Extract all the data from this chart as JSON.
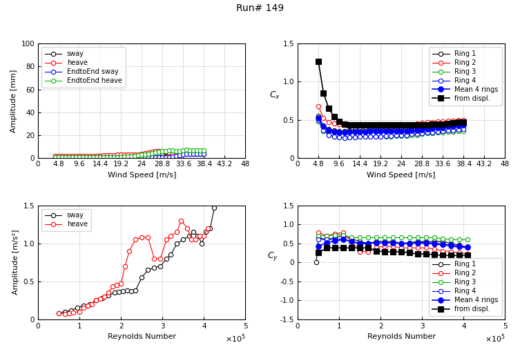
{
  "title": "Run# 149",
  "top_left": {
    "xlabel": "Wind Speed [m/s]",
    "ylabel": "Amplitude [mm]",
    "xlim": [
      0,
      48
    ],
    "ylim": [
      0,
      100
    ],
    "xticks": [
      0,
      4.8,
      9.6,
      14.4,
      19.2,
      24,
      28.8,
      33.6,
      38.4,
      43.2,
      48
    ],
    "yticks": [
      0,
      20,
      40,
      60,
      80,
      100
    ],
    "wind_speed": [
      4.0,
      4.8,
      5.6,
      6.4,
      7.2,
      8.0,
      8.8,
      9.6,
      10.4,
      11.2,
      12.0,
      12.8,
      13.6,
      14.4,
      15.2,
      16.0,
      16.8,
      17.6,
      18.4,
      19.2,
      20.0,
      20.8,
      21.6,
      22.4,
      23.2,
      24.0,
      24.8,
      25.6,
      26.4,
      27.2,
      28.0,
      28.8,
      29.6,
      30.4,
      31.2,
      32.0,
      32.8,
      33.6,
      34.4,
      35.2,
      36.0,
      36.8,
      37.6,
      38.4
    ],
    "sway": [
      1.0,
      1.2,
      1.0,
      0.8,
      0.8,
      0.8,
      0.8,
      0.8,
      0.8,
      1.0,
      1.0,
      1.0,
      1.2,
      1.5,
      1.5,
      1.5,
      1.5,
      1.5,
      1.5,
      1.5,
      1.5,
      1.5,
      1.5,
      1.5,
      1.5,
      1.8,
      2.0,
      2.0,
      2.5,
      3.0,
      3.5,
      4.0,
      4.5,
      4.5,
      4.0,
      4.0,
      4.0,
      4.0,
      4.0,
      3.5,
      3.5,
      3.5,
      3.5,
      3.5
    ],
    "heave": [
      1.5,
      1.5,
      1.5,
      1.5,
      1.5,
      1.5,
      1.5,
      1.5,
      1.5,
      1.5,
      1.5,
      1.5,
      1.5,
      1.5,
      2.0,
      2.0,
      2.0,
      2.0,
      2.5,
      2.5,
      2.5,
      2.5,
      2.5,
      2.5,
      3.0,
      3.5,
      4.0,
      4.5,
      5.0,
      5.5,
      5.5,
      5.5,
      5.0,
      4.5,
      4.0,
      4.5,
      4.5,
      4.5,
      4.5,
      4.5,
      4.5,
      5.0,
      5.0,
      5.0
    ],
    "ete_sway": [
      0.5,
      0.5,
      0.5,
      0.5,
      0.5,
      0.5,
      0.5,
      0.5,
      0.5,
      0.5,
      0.5,
      0.5,
      0.5,
      0.5,
      0.5,
      0.5,
      0.5,
      0.5,
      0.5,
      0.5,
      0.5,
      0.5,
      0.5,
      0.5,
      0.5,
      0.5,
      0.5,
      0.5,
      0.5,
      0.5,
      0.5,
      0.5,
      0.5,
      0.5,
      1.0,
      1.5,
      2.0,
      3.0,
      3.5,
      3.5,
      3.5,
      3.5,
      3.5,
      3.5
    ],
    "ete_heave": [
      0.5,
      0.5,
      0.5,
      0.5,
      0.5,
      0.5,
      0.5,
      0.5,
      0.5,
      0.5,
      0.5,
      0.5,
      0.5,
      0.5,
      0.5,
      0.5,
      0.5,
      0.5,
      0.5,
      0.5,
      0.8,
      1.0,
      1.2,
      1.5,
      2.0,
      2.5,
      3.0,
      3.5,
      4.0,
      4.5,
      5.0,
      5.5,
      6.0,
      6.5,
      6.5,
      5.5,
      5.5,
      6.5,
      7.0,
      6.5,
      6.5,
      6.5,
      6.5,
      6.5
    ],
    "legend": [
      "sway",
      "heave",
      "EndtoEnd sway",
      "EndtoEnd heave"
    ],
    "colors": [
      "#000000",
      "#ff0000",
      "#0000ff",
      "#00bb00"
    ]
  },
  "top_right": {
    "xlabel": "Wind Speed [m/s]",
    "ylabel": "C_x",
    "xlim": [
      0,
      48
    ],
    "ylim": [
      0,
      1.5
    ],
    "xticks": [
      0,
      4.8,
      9.6,
      14.4,
      19.2,
      24,
      28.8,
      33.6,
      38.4,
      43.2,
      48
    ],
    "yticks": [
      0,
      0.5,
      1.0,
      1.5
    ],
    "wind_speed": [
      4.8,
      6.0,
      7.2,
      8.4,
      9.6,
      10.8,
      12.0,
      13.2,
      14.4,
      15.6,
      16.8,
      18.0,
      19.2,
      20.4,
      21.6,
      22.8,
      24.0,
      25.2,
      26.4,
      27.6,
      28.8,
      30.0,
      31.2,
      32.4,
      33.6,
      34.8,
      36.0,
      37.2,
      38.4
    ],
    "ring1": [
      0.55,
      0.42,
      0.38,
      0.36,
      0.35,
      0.35,
      0.36,
      0.37,
      0.37,
      0.37,
      0.38,
      0.38,
      0.38,
      0.38,
      0.38,
      0.38,
      0.38,
      0.38,
      0.39,
      0.39,
      0.4,
      0.41,
      0.42,
      0.43,
      0.44,
      0.45,
      0.46,
      0.47,
      0.48
    ],
    "ring2": [
      0.68,
      0.52,
      0.47,
      0.45,
      0.44,
      0.44,
      0.44,
      0.44,
      0.44,
      0.44,
      0.44,
      0.44,
      0.44,
      0.44,
      0.44,
      0.44,
      0.44,
      0.44,
      0.44,
      0.45,
      0.46,
      0.47,
      0.47,
      0.48,
      0.48,
      0.49,
      0.49,
      0.5,
      0.5
    ],
    "ring3": [
      0.48,
      0.35,
      0.3,
      0.28,
      0.27,
      0.26,
      0.27,
      0.27,
      0.28,
      0.28,
      0.28,
      0.28,
      0.28,
      0.28,
      0.28,
      0.29,
      0.29,
      0.29,
      0.3,
      0.3,
      0.31,
      0.32,
      0.32,
      0.33,
      0.33,
      0.34,
      0.34,
      0.35,
      0.35
    ],
    "ring4": [
      0.5,
      0.36,
      0.3,
      0.28,
      0.27,
      0.26,
      0.27,
      0.27,
      0.28,
      0.28,
      0.28,
      0.28,
      0.28,
      0.29,
      0.29,
      0.3,
      0.3,
      0.3,
      0.31,
      0.31,
      0.32,
      0.33,
      0.33,
      0.34,
      0.35,
      0.36,
      0.36,
      0.37,
      0.38
    ],
    "mean4": [
      0.52,
      0.41,
      0.36,
      0.34,
      0.33,
      0.33,
      0.34,
      0.34,
      0.34,
      0.34,
      0.35,
      0.35,
      0.35,
      0.35,
      0.35,
      0.35,
      0.35,
      0.35,
      0.36,
      0.36,
      0.37,
      0.38,
      0.39,
      0.4,
      0.4,
      0.41,
      0.41,
      0.42,
      0.43
    ],
    "from_displ_ws": [
      4.8,
      6.0,
      7.2,
      8.4,
      9.6,
      10.8,
      12.0,
      13.2,
      14.4,
      15.6,
      16.8,
      18.0,
      19.2,
      20.4,
      21.6,
      22.8,
      24.0,
      25.2,
      26.4,
      27.6,
      28.8,
      30.0,
      31.2,
      32.4,
      33.6,
      34.8,
      36.0,
      37.2,
      38.4
    ],
    "from_displ": [
      1.27,
      0.85,
      0.65,
      0.54,
      0.48,
      0.44,
      0.43,
      0.43,
      0.43,
      0.43,
      0.43,
      0.43,
      0.43,
      0.43,
      0.43,
      0.43,
      0.43,
      0.43,
      0.43,
      0.43,
      0.43,
      0.43,
      0.44,
      0.44,
      0.44,
      0.45,
      0.46,
      0.47,
      0.47
    ],
    "legend": [
      "Ring 1",
      "Ring 2",
      "Ring 3",
      "Ring 4",
      "Mean 4 rings",
      "from displ."
    ],
    "ring_colors": [
      "#000000",
      "#ff0000",
      "#00aa00",
      "#0000ff"
    ],
    "mean_color": "#0000ff",
    "displ_color": "#000000"
  },
  "bot_left": {
    "xlabel": "Reynolds Number",
    "ylabel": "Amplitude [m/s²]",
    "xlim": [
      0,
      500000.0
    ],
    "ylim": [
      0,
      1.5
    ],
    "xticks": [
      0,
      100000.0,
      200000.0,
      300000.0,
      400000.0,
      500000.0
    ],
    "yticks": [
      0,
      0.5,
      1.0,
      1.5
    ],
    "re_sway": [
      50000.0,
      65000.0,
      80000.0,
      95000.0,
      110000.0,
      125000.0,
      140000.0,
      155000.0,
      170000.0,
      185000.0,
      195000.0,
      205000.0,
      215000.0,
      225000.0,
      235000.0,
      250000.0,
      265000.0,
      280000.0,
      295000.0,
      310000.0,
      320000.0,
      335000.0,
      350000.0,
      365000.0,
      375000.0,
      385000.0,
      395000.0,
      405000.0,
      415000.0,
      425000.0
    ],
    "sway": [
      0.08,
      0.1,
      0.12,
      0.15,
      0.18,
      0.2,
      0.25,
      0.28,
      0.32,
      0.35,
      0.36,
      0.37,
      0.38,
      0.37,
      0.38,
      0.55,
      0.65,
      0.68,
      0.7,
      0.8,
      0.85,
      1.0,
      1.05,
      1.1,
      1.15,
      1.1,
      1.0,
      1.15,
      1.2,
      1.47
    ],
    "re_heave": [
      50000.0,
      65000.0,
      75000.0,
      85000.0,
      100000.0,
      110000.0,
      120000.0,
      130000.0,
      140000.0,
      150000.0,
      160000.0,
      170000.0,
      180000.0,
      190000.0,
      200000.0,
      210000.0,
      220000.0,
      235000.0,
      250000.0,
      265000.0,
      280000.0,
      295000.0,
      310000.0,
      320000.0,
      335000.0,
      345000.0,
      360000.0,
      370000.0,
      380000.0,
      390000.0,
      400000.0,
      410000.0
    ],
    "heave": [
      0.08,
      0.07,
      0.08,
      0.09,
      0.1,
      0.15,
      0.18,
      0.2,
      0.25,
      0.27,
      0.3,
      0.35,
      0.43,
      0.45,
      0.47,
      0.7,
      0.9,
      1.05,
      1.08,
      1.08,
      0.8,
      0.8,
      1.05,
      1.1,
      1.15,
      1.3,
      1.2,
      1.05,
      1.05,
      1.1,
      1.1,
      1.2
    ],
    "legend": [
      "sway",
      "heave"
    ],
    "colors": [
      "#000000",
      "#ff0000"
    ]
  },
  "bot_right": {
    "xlabel": "Reynolds Number",
    "ylabel": "C_y",
    "xlim": [
      0,
      500000.0
    ],
    "ylim": [
      -1.5,
      1.5
    ],
    "xticks": [
      0,
      100000.0,
      200000.0,
      300000.0,
      400000.0,
      500000.0
    ],
    "yticks": [
      -1.5,
      -1.0,
      -0.5,
      0,
      0.5,
      1.0,
      1.5
    ],
    "re": [
      50000.0,
      70000.0,
      90000.0,
      110000.0,
      130000.0,
      150000.0,
      170000.0,
      190000.0,
      210000.0,
      230000.0,
      250000.0,
      270000.0,
      290000.0,
      310000.0,
      330000.0,
      350000.0,
      370000.0,
      390000.0,
      410000.0
    ],
    "ring1": [
      0.65,
      0.6,
      0.65,
      0.7,
      0.62,
      0.55,
      0.5,
      0.55,
      0.55,
      0.55,
      0.5,
      0.52,
      0.55,
      0.55,
      0.55,
      0.55,
      0.5,
      0.45,
      0.4
    ],
    "ring2": [
      0.78,
      0.7,
      0.75,
      0.78,
      0.55,
      0.28,
      0.28,
      0.4,
      0.42,
      0.42,
      0.38,
      0.38,
      0.38,
      0.38,
      0.35,
      0.3,
      0.28,
      0.25,
      0.22
    ],
    "ring3": [
      0.7,
      0.7,
      0.72,
      0.72,
      0.65,
      0.65,
      0.65,
      0.65,
      0.65,
      0.65,
      0.65,
      0.65,
      0.65,
      0.65,
      0.65,
      0.62,
      0.6,
      0.6,
      0.6
    ],
    "ring4": [
      0.6,
      0.6,
      0.6,
      0.62,
      0.55,
      0.48,
      0.5,
      0.52,
      0.52,
      0.52,
      0.5,
      0.5,
      0.5,
      0.5,
      0.48,
      0.45,
      0.42,
      0.4,
      0.38
    ],
    "mean4": [
      0.42,
      0.52,
      0.56,
      0.6,
      0.55,
      0.5,
      0.5,
      0.52,
      0.52,
      0.52,
      0.5,
      0.5,
      0.52,
      0.52,
      0.5,
      0.48,
      0.45,
      0.42,
      0.4
    ],
    "re_displ": [
      50000.0,
      70000.0,
      90000.0,
      110000.0,
      130000.0,
      150000.0,
      170000.0,
      190000.0,
      210000.0,
      230000.0,
      250000.0,
      270000.0,
      290000.0,
      310000.0,
      330000.0,
      350000.0,
      370000.0,
      390000.0,
      410000.0
    ],
    "from_displ": [
      0.25,
      0.38,
      0.38,
      0.38,
      0.38,
      0.38,
      0.38,
      0.3,
      0.28,
      0.28,
      0.28,
      0.25,
      0.22,
      0.22,
      0.2,
      0.18,
      0.18,
      0.18,
      0.18
    ],
    "ring1_start": [
      45000.0
    ],
    "ring1_zero": [
      0.0
    ],
    "legend": [
      "Ring 1",
      "Ring 2",
      "Ring 3",
      "Ring 4",
      "Mean 4 rings",
      "from displ."
    ],
    "ring_colors": [
      "#000000",
      "#ff0000",
      "#00aa00",
      "#0000ff"
    ],
    "mean_color": "#0000ff",
    "displ_color": "#000000"
  }
}
